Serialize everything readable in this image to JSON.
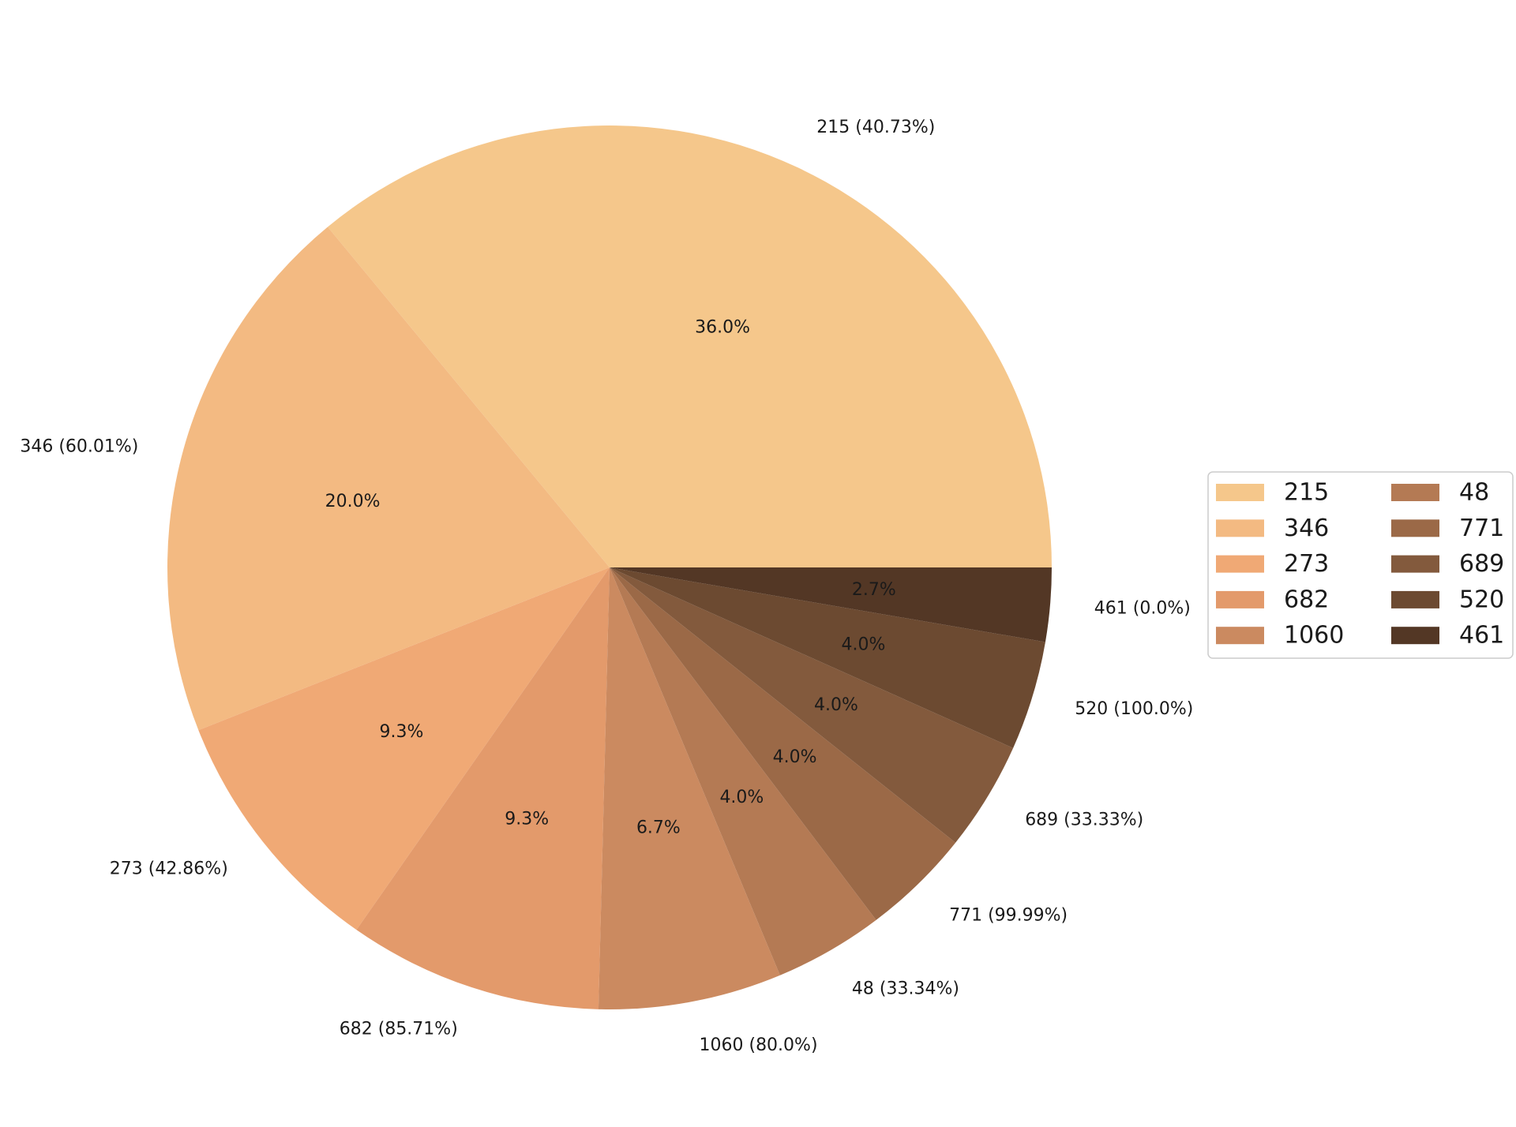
{
  "chart_data": {
    "type": "pie",
    "title": "",
    "start_angle_deg": 0,
    "direction": "counterclockwise",
    "legend_position": "right",
    "legend_columns": 2,
    "slices": [
      {
        "label": "215",
        "outer_label": "215 (40.73%)",
        "pct_label": "36.0%",
        "value": 36.0,
        "color": "#f5c78b"
      },
      {
        "label": "346",
        "outer_label": "346 (60.01%)",
        "pct_label": "20.0%",
        "value": 20.0,
        "color": "#f3ba82"
      },
      {
        "label": "273",
        "outer_label": "273 (42.86%)",
        "pct_label": "9.3%",
        "value": 9.3,
        "color": "#f0a975"
      },
      {
        "label": "682",
        "outer_label": "682 (85.71%)",
        "pct_label": "9.3%",
        "value": 9.3,
        "color": "#e39a6b"
      },
      {
        "label": "1060",
        "outer_label": "1060 (80.0%)",
        "pct_label": "6.7%",
        "value": 6.7,
        "color": "#cb8a60"
      },
      {
        "label": "48",
        "outer_label": "48 (33.34%)",
        "pct_label": "4.0%",
        "value": 4.0,
        "color": "#b47a54"
      },
      {
        "label": "771",
        "outer_label": "771 (99.99%)",
        "pct_label": "4.0%",
        "value": 4.0,
        "color": "#9b6947"
      },
      {
        "label": "689",
        "outer_label": "689 (33.33%)",
        "pct_label": "4.0%",
        "value": 4.0,
        "color": "#835a3d"
      },
      {
        "label": "520",
        "outer_label": "520 (100.0%)",
        "pct_label": "4.0%",
        "value": 4.0,
        "color": "#6c4a31"
      },
      {
        "label": "461",
        "outer_label": "461 (0.0%)",
        "pct_label": "2.7%",
        "value": 2.7,
        "color": "#533725"
      }
    ]
  }
}
